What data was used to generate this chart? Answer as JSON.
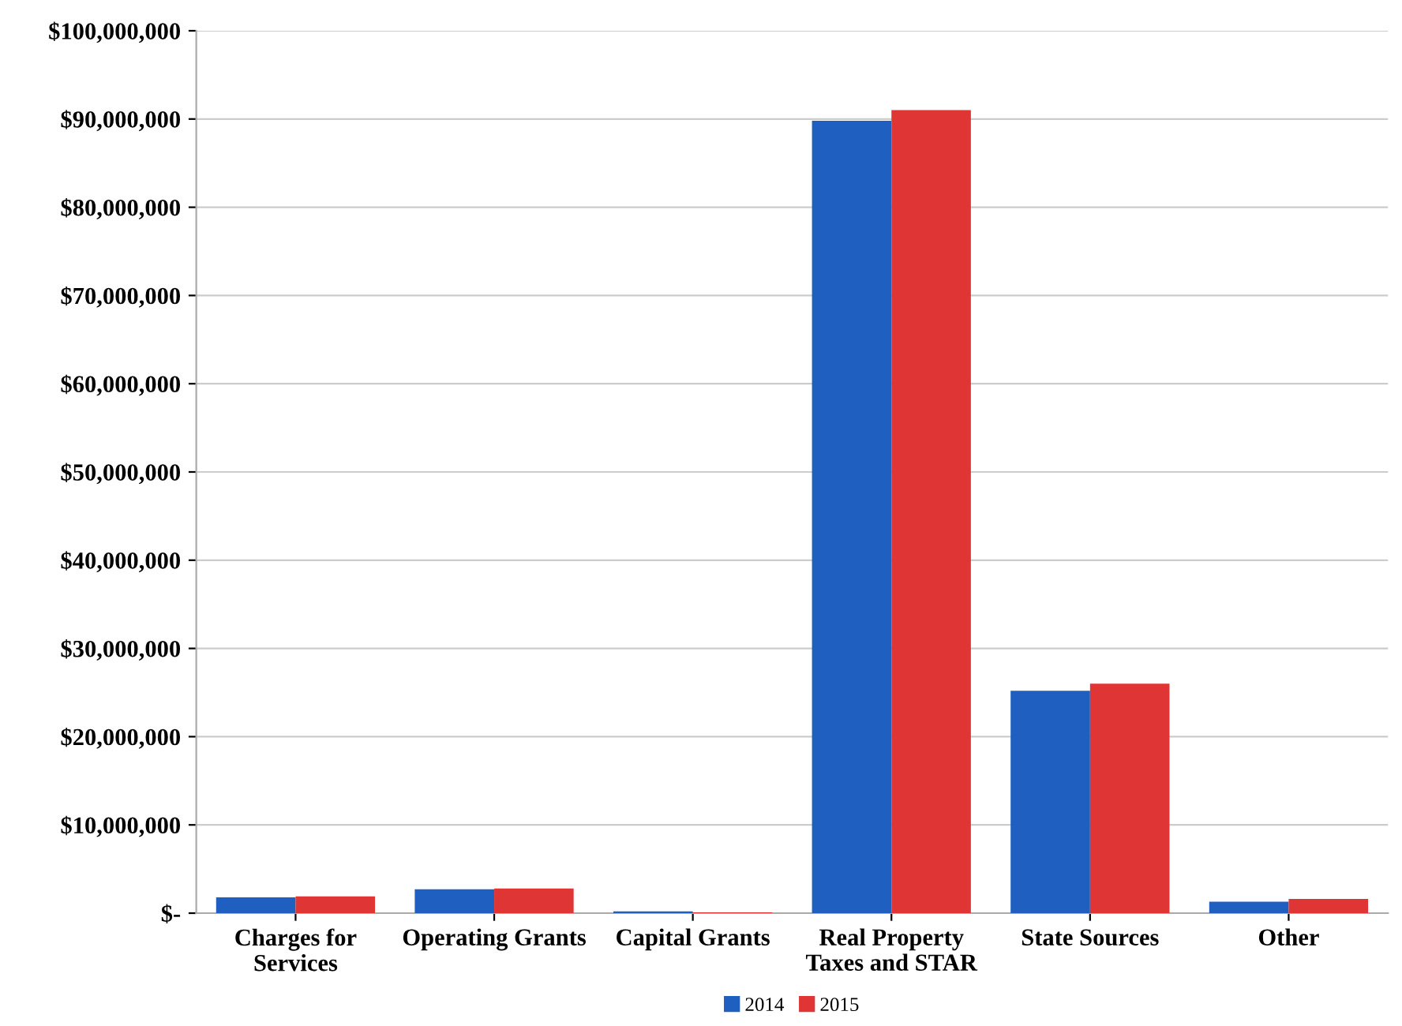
{
  "chart_data": {
    "type": "bar",
    "categories": [
      "Charges for\nServices",
      "Operating Grants",
      "Capital Grants",
      "Real Property\nTaxes and STAR",
      "State Sources",
      "Other"
    ],
    "series": [
      {
        "name": "2014",
        "color": "#1f5fc0",
        "values": [
          1800000,
          2700000,
          200000,
          89800000,
          25200000,
          1300000
        ]
      },
      {
        "name": "2015",
        "color": "#e03535",
        "values": [
          1900000,
          2800000,
          100000,
          91000000,
          26000000,
          1600000
        ]
      }
    ],
    "ylim": [
      0,
      100000000
    ],
    "yticks": [
      {
        "value": 0,
        "label": "$-"
      },
      {
        "value": 10000000,
        "label": "$10,000,000"
      },
      {
        "value": 20000000,
        "label": "$20,000,000"
      },
      {
        "value": 30000000,
        "label": "$30,000,000"
      },
      {
        "value": 40000000,
        "label": "$40,000,000"
      },
      {
        "value": 50000000,
        "label": "$50,000,000"
      },
      {
        "value": 60000000,
        "label": "$60,000,000"
      },
      {
        "value": 70000000,
        "label": "$70,000,000"
      },
      {
        "value": 80000000,
        "label": "$80,000,000"
      },
      {
        "value": 90000000,
        "label": "$90,000,000"
      },
      {
        "value": 100000000,
        "label": "$100,000,000"
      }
    ],
    "grid": "y",
    "legend": "bottom"
  }
}
